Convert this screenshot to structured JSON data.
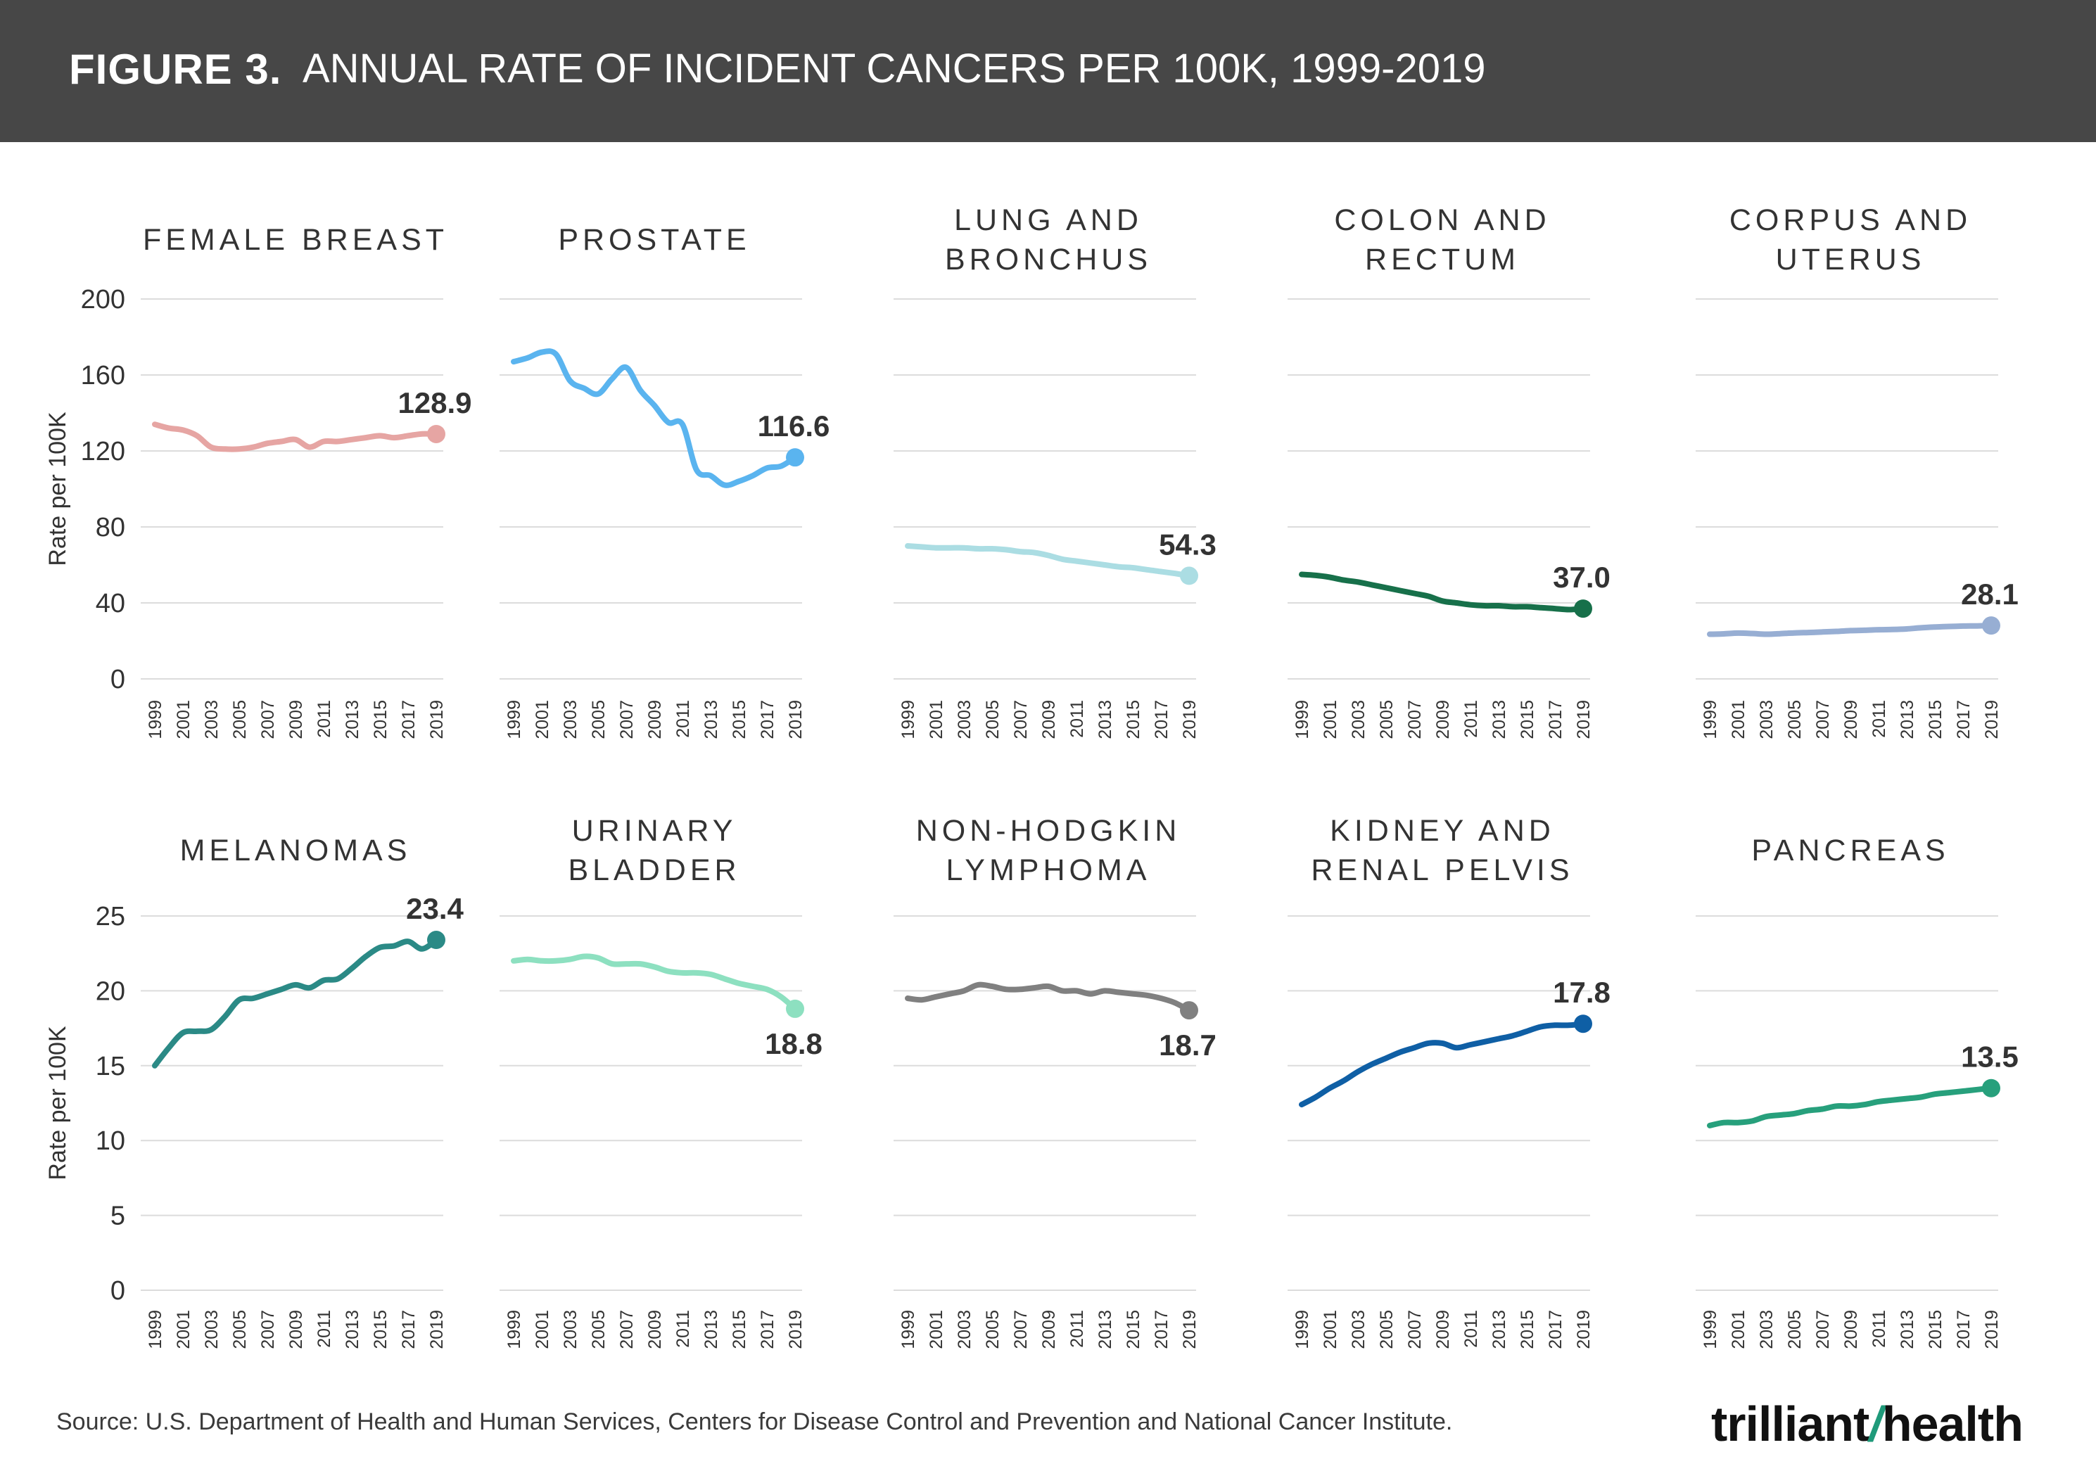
{
  "header": {
    "figure_label": "FIGURE 3.",
    "title": "ANNUAL RATE OF INCIDENT CANCERS PER 100K, 1999-2019"
  },
  "footer": {
    "source": "Source: U.S. Department of Health and Human Services, Centers for Disease Control and Prevention and National Cancer Institute.",
    "brand_part1": "trilliant",
    "brand_part2": "health"
  },
  "chart_data": [
    {
      "type": "line",
      "title": [
        "FEMALE BREAST"
      ],
      "row": 0,
      "col": 0,
      "color": "#e6a5a3",
      "ylabel": "Rate per 100K",
      "ylim": [
        0,
        200
      ],
      "yticks": [
        0,
        40,
        80,
        120,
        160,
        200
      ],
      "xticks": [
        "1999",
        "2001",
        "2003",
        "2005",
        "2007",
        "2009",
        "2011",
        "2013",
        "2015",
        "2017",
        "2019"
      ],
      "x": [
        1999,
        2000,
        2001,
        2002,
        2003,
        2004,
        2005,
        2006,
        2007,
        2008,
        2009,
        2010,
        2011,
        2012,
        2013,
        2014,
        2015,
        2016,
        2017,
        2018,
        2019
      ],
      "values": [
        134,
        132,
        131,
        128,
        122,
        121,
        121,
        122,
        124,
        125,
        126,
        122,
        125,
        125,
        126,
        127,
        128,
        127,
        128,
        129,
        128.9
      ],
      "end_label": "128.9",
      "label_pos": "above"
    },
    {
      "type": "line",
      "title": [
        "PROSTATE"
      ],
      "row": 0,
      "col": 1,
      "color": "#5ab4ef",
      "ylim": [
        0,
        200
      ],
      "yticks": [
        0,
        40,
        80,
        120,
        160,
        200
      ],
      "xticks": [
        "1999",
        "2001",
        "2003",
        "2005",
        "2007",
        "2009",
        "2011",
        "2013",
        "2015",
        "2017",
        "2019"
      ],
      "x": [
        1999,
        2000,
        2001,
        2002,
        2003,
        2004,
        2005,
        2006,
        2007,
        2008,
        2009,
        2010,
        2011,
        2012,
        2013,
        2014,
        2015,
        2016,
        2017,
        2018,
        2019
      ],
      "values": [
        167,
        169,
        172,
        171,
        157,
        153,
        150,
        158,
        164,
        152,
        144,
        135,
        134,
        110,
        107,
        102,
        104,
        107,
        111,
        112,
        116.6
      ],
      "end_label": "116.6",
      "label_pos": "above"
    },
    {
      "type": "line",
      "title": [
        "LUNG AND",
        "BRONCHUS"
      ],
      "row": 0,
      "col": 2,
      "color": "#abdde3",
      "ylim": [
        0,
        200
      ],
      "yticks": [
        0,
        40,
        80,
        120,
        160,
        200
      ],
      "xticks": [
        "1999",
        "2001",
        "2003",
        "2005",
        "2007",
        "2009",
        "2011",
        "2013",
        "2015",
        "2017",
        "2019"
      ],
      "x": [
        1999,
        2000,
        2001,
        2002,
        2003,
        2004,
        2005,
        2006,
        2007,
        2008,
        2009,
        2010,
        2011,
        2012,
        2013,
        2014,
        2015,
        2016,
        2017,
        2018,
        2019
      ],
      "values": [
        70,
        69.5,
        69,
        69,
        69,
        68.5,
        68.5,
        68,
        67,
        66.5,
        65,
        63,
        62,
        61,
        60,
        59,
        58.5,
        57.5,
        56.5,
        55.5,
        54.3
      ],
      "end_label": "54.3",
      "label_pos": "above"
    },
    {
      "type": "line",
      "title": [
        "COLON AND",
        "RECTUM"
      ],
      "row": 0,
      "col": 3,
      "color": "#17704a",
      "ylim": [
        0,
        200
      ],
      "yticks": [
        0,
        40,
        80,
        120,
        160,
        200
      ],
      "xticks": [
        "1999",
        "2001",
        "2003",
        "2005",
        "2007",
        "2009",
        "2011",
        "2013",
        "2015",
        "2017",
        "2019"
      ],
      "x": [
        1999,
        2000,
        2001,
        2002,
        2003,
        2004,
        2005,
        2006,
        2007,
        2008,
        2009,
        2010,
        2011,
        2012,
        2013,
        2014,
        2015,
        2016,
        2017,
        2018,
        2019
      ],
      "values": [
        55,
        54.5,
        53.5,
        52,
        51,
        49.5,
        48,
        46.5,
        45,
        43.5,
        41,
        40,
        39,
        38.5,
        38.5,
        38,
        38,
        37.5,
        37,
        36.5,
        37.0
      ],
      "end_label": "37.0",
      "label_pos": "above"
    },
    {
      "type": "line",
      "title": [
        "CORPUS AND",
        "UTERUS"
      ],
      "row": 0,
      "col": 4,
      "color": "#97aed3",
      "ylim": [
        0,
        200
      ],
      "yticks": [
        0,
        40,
        80,
        120,
        160,
        200
      ],
      "xticks": [
        "1999",
        "2001",
        "2003",
        "2005",
        "2007",
        "2009",
        "2011",
        "2013",
        "2015",
        "2017",
        "2019"
      ],
      "x": [
        1999,
        2000,
        2001,
        2002,
        2003,
        2004,
        2005,
        2006,
        2007,
        2008,
        2009,
        2010,
        2011,
        2012,
        2013,
        2014,
        2015,
        2016,
        2017,
        2018,
        2019
      ],
      "values": [
        23.5,
        23.7,
        24.1,
        23.9,
        23.5,
        23.8,
        24.2,
        24.4,
        24.7,
        25,
        25.4,
        25.6,
        25.9,
        26,
        26.3,
        26.9,
        27.3,
        27.6,
        27.8,
        27.9,
        28.1
      ],
      "end_label": "28.1",
      "label_pos": "above"
    },
    {
      "type": "line",
      "title": [
        "MELANOMAS"
      ],
      "row": 1,
      "col": 0,
      "color": "#2b8a86",
      "ylabel": "Rate per 100K",
      "ylim": [
        0,
        25
      ],
      "yticks": [
        0,
        5,
        10,
        15,
        20,
        25
      ],
      "xticks": [
        "1999",
        "2001",
        "2003",
        "2005",
        "2007",
        "2009",
        "2011",
        "2013",
        "2015",
        "2017",
        "2019"
      ],
      "x": [
        1999,
        2000,
        2001,
        2002,
        2003,
        2004,
        2005,
        2006,
        2007,
        2008,
        2009,
        2010,
        2011,
        2012,
        2013,
        2014,
        2015,
        2016,
        2017,
        2018,
        2019
      ],
      "values": [
        15,
        16.2,
        17.2,
        17.3,
        17.4,
        18.3,
        19.4,
        19.5,
        19.8,
        20.1,
        20.4,
        20.2,
        20.7,
        20.8,
        21.5,
        22.3,
        22.9,
        23,
        23.3,
        22.8,
        23.4
      ],
      "end_label": "23.4",
      "label_pos": "above"
    },
    {
      "type": "line",
      "title": [
        "URINARY",
        "BLADDER"
      ],
      "row": 1,
      "col": 1,
      "color": "#8de0c0",
      "ylim": [
        0,
        25
      ],
      "yticks": [
        0,
        5,
        10,
        15,
        20,
        25
      ],
      "xticks": [
        "1999",
        "2001",
        "2003",
        "2005",
        "2007",
        "2009",
        "2011",
        "2013",
        "2015",
        "2017",
        "2019"
      ],
      "x": [
        1999,
        2000,
        2001,
        2002,
        2003,
        2004,
        2005,
        2006,
        2007,
        2008,
        2009,
        2010,
        2011,
        2012,
        2013,
        2014,
        2015,
        2016,
        2017,
        2018,
        2019
      ],
      "values": [
        22,
        22.1,
        22,
        22,
        22.1,
        22.3,
        22.2,
        21.8,
        21.8,
        21.8,
        21.6,
        21.3,
        21.2,
        21.2,
        21.1,
        20.8,
        20.5,
        20.3,
        20.1,
        19.6,
        18.8
      ],
      "end_label": "18.8",
      "label_pos": "below"
    },
    {
      "type": "line",
      "title": [
        "NON-HODGKIN",
        "LYMPHOMA"
      ],
      "row": 1,
      "col": 2,
      "color": "#808080",
      "ylim": [
        0,
        25
      ],
      "yticks": [
        0,
        5,
        10,
        15,
        20,
        25
      ],
      "xticks": [
        "1999",
        "2001",
        "2003",
        "2005",
        "2007",
        "2009",
        "2011",
        "2013",
        "2015",
        "2017",
        "2019"
      ],
      "x": [
        1999,
        2000,
        2001,
        2002,
        2003,
        2004,
        2005,
        2006,
        2007,
        2008,
        2009,
        2010,
        2011,
        2012,
        2013,
        2014,
        2015,
        2016,
        2017,
        2018,
        2019
      ],
      "values": [
        19.5,
        19.4,
        19.6,
        19.8,
        20,
        20.4,
        20.3,
        20.1,
        20.1,
        20.2,
        20.3,
        20,
        20,
        19.8,
        20,
        19.9,
        19.8,
        19.7,
        19.5,
        19.2,
        18.7
      ],
      "end_label": "18.7",
      "label_pos": "below"
    },
    {
      "type": "line",
      "title": [
        "KIDNEY AND",
        "RENAL PELVIS"
      ],
      "row": 1,
      "col": 3,
      "color": "#0f5fa5",
      "ylim": [
        0,
        25
      ],
      "yticks": [
        0,
        5,
        10,
        15,
        20,
        25
      ],
      "xticks": [
        "1999",
        "2001",
        "2003",
        "2005",
        "2007",
        "2009",
        "2011",
        "2013",
        "2015",
        "2017",
        "2019"
      ],
      "x": [
        1999,
        2000,
        2001,
        2002,
        2003,
        2004,
        2005,
        2006,
        2007,
        2008,
        2009,
        2010,
        2011,
        2012,
        2013,
        2014,
        2015,
        2016,
        2017,
        2018,
        2019
      ],
      "values": [
        12.4,
        12.9,
        13.5,
        14,
        14.6,
        15.1,
        15.5,
        15.9,
        16.2,
        16.5,
        16.5,
        16.2,
        16.4,
        16.6,
        16.8,
        17,
        17.3,
        17.6,
        17.7,
        17.7,
        17.8
      ],
      "end_label": "17.8",
      "label_pos": "above"
    },
    {
      "type": "line",
      "title": [
        "PANCREAS"
      ],
      "row": 1,
      "col": 4,
      "color": "#27a07c",
      "ylim": [
        0,
        25
      ],
      "yticks": [
        0,
        5,
        10,
        15,
        20,
        25
      ],
      "xticks": [
        "1999",
        "2001",
        "2003",
        "2005",
        "2007",
        "2009",
        "2011",
        "2013",
        "2015",
        "2017",
        "2019"
      ],
      "x": [
        1999,
        2000,
        2001,
        2002,
        2003,
        2004,
        2005,
        2006,
        2007,
        2008,
        2009,
        2010,
        2011,
        2012,
        2013,
        2014,
        2015,
        2016,
        2017,
        2018,
        2019
      ],
      "values": [
        11,
        11.2,
        11.2,
        11.3,
        11.6,
        11.7,
        11.8,
        12,
        12.1,
        12.3,
        12.3,
        12.4,
        12.6,
        12.7,
        12.8,
        12.9,
        13.1,
        13.2,
        13.3,
        13.4,
        13.5
      ],
      "end_label": "13.5",
      "label_pos": "above"
    }
  ]
}
